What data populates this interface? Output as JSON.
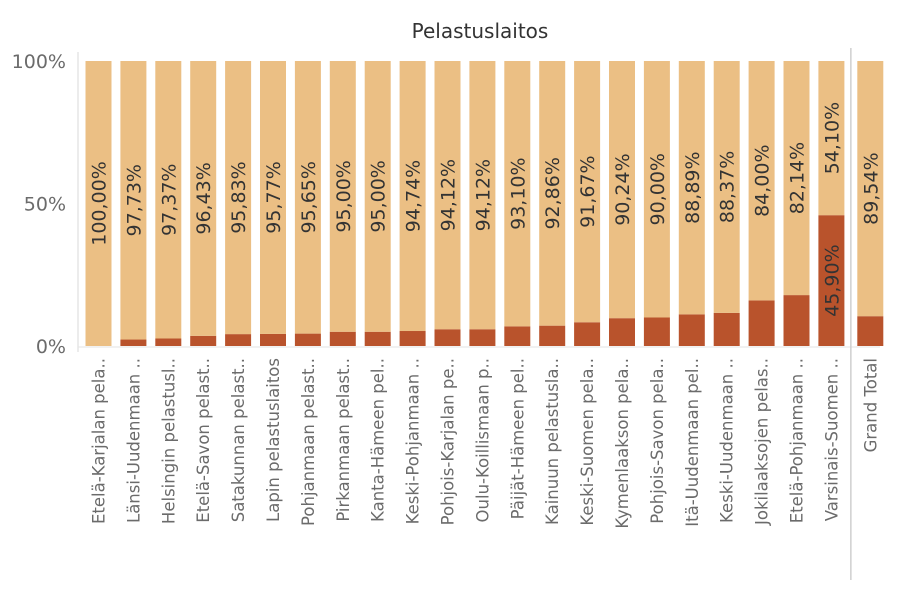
{
  "chart_data": {
    "type": "bar",
    "stacked": true,
    "title": "Pelastuslaitos",
    "xlabel": "",
    "ylabel": "",
    "ylim": [
      0,
      100
    ],
    "y_ticks": [
      "0%",
      "50%",
      "100%"
    ],
    "grid": false,
    "categories": [
      "Etelä-Karjalan pela..",
      "Länsi-Uudenmaan ..",
      "Helsingin pelastusl..",
      "Etelä-Savon pelast..",
      "Satakunnan pelast..",
      "Lapin pelastuslaitos",
      "Pohjanmaan pelast..",
      "Pirkanmaan pelast..",
      "Kanta-Hämeen pel..",
      "Keski-Pohjanmaan ..",
      "Pohjois-Karjalan pe..",
      "Oulu-Koillismaan p..",
      "Päijät-Hämeen pel..",
      "Kainuun pelastusla..",
      "Keski-Suomen pela..",
      "Kymenlaakson pela..",
      "Pohjois-Savon pela..",
      "Itä-Uudenmaan pel..",
      "Keski-Uudenmaan ..",
      "Jokilaaksojen pelas..",
      "Etelä-Pohjanmaan ..",
      "Varsinais-Suomen ..",
      "Grand Total"
    ],
    "series": [
      {
        "color": "#ebbf84",
        "values": [
          100.0,
          97.73,
          97.37,
          96.43,
          95.83,
          95.77,
          95.65,
          95.0,
          95.0,
          94.74,
          94.12,
          94.12,
          93.1,
          92.86,
          91.67,
          90.24,
          90.0,
          88.89,
          88.37,
          84.0,
          82.14,
          54.1,
          89.54
        ],
        "labels": [
          "100,00%",
          "97,73%",
          "97,37%",
          "96,43%",
          "95,83%",
          "95,77%",
          "95,65%",
          "95,00%",
          "95,00%",
          "94,74%",
          "94,12%",
          "94,12%",
          "93,10%",
          "92,86%",
          "91,67%",
          "90,24%",
          "90,00%",
          "88,89%",
          "88,37%",
          "84,00%",
          "82,14%",
          "54,10%",
          "89,54%"
        ]
      },
      {
        "color": "#b9532c",
        "values": [
          0.0,
          2.27,
          2.63,
          3.57,
          4.17,
          4.23,
          4.35,
          5.0,
          5.0,
          5.26,
          5.88,
          5.88,
          6.9,
          7.14,
          8.33,
          9.76,
          10.0,
          11.11,
          11.63,
          16.0,
          17.86,
          45.9,
          10.46
        ],
        "labels": [
          "",
          "",
          "",
          "",
          "",
          "",
          "",
          "",
          "",
          "",
          "",
          "",
          "",
          "",
          "",
          "",
          "",
          "",
          "",
          "",
          "",
          "45,90%",
          ""
        ]
      }
    ],
    "separator_before": "Grand Total"
  }
}
